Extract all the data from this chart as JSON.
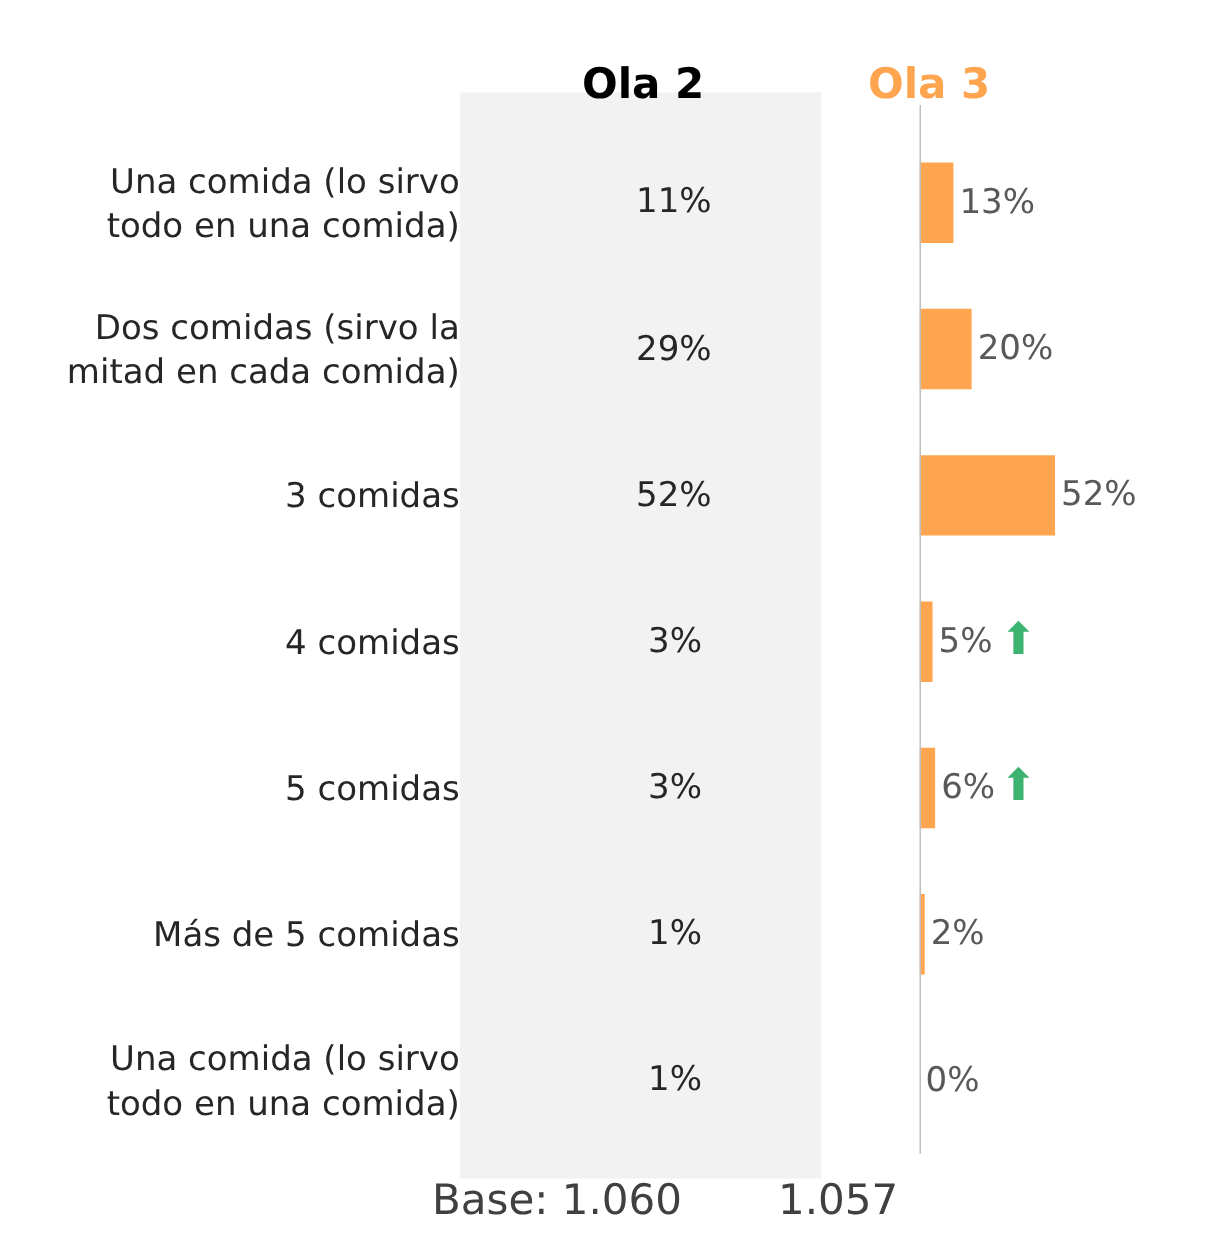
{
  "chart_data": [
    {
      "type": "other",
      "title": "Ola 2",
      "annotations": [
        "11%",
        "29%",
        "52%",
        "3%",
        "3%",
        "1%",
        "1%",
        "Base: 1.060"
      ]
    },
    {
      "type": "bar",
      "orientation": "horizontal",
      "title": "Ola 3",
      "categories": [
        "Una comida (lo sirvo todo en una comida)",
        "Dos comidas (sirvo la mitad en cada comida)",
        "3 comidas",
        "4 comidas",
        "5 comidas",
        "Más de 5 comidas",
        "Una comida (lo sirvo todo en una comida)"
      ],
      "values": [
        13,
        20,
        52,
        5,
        6,
        2,
        0
      ],
      "value_labels": [
        "13%",
        "20%",
        "52%",
        "5%",
        "6%",
        "2%",
        "0%"
      ],
      "color": "#ffa54f",
      "annotations": [
        "⬆",
        "⬆",
        "1.057"
      ]
    }
  ]
}
